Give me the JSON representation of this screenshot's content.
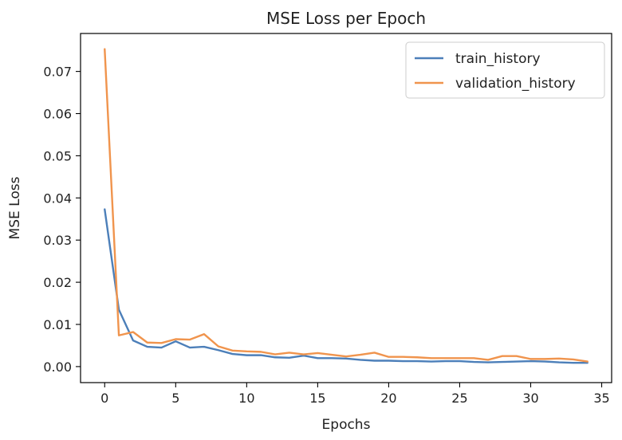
{
  "chart_data": {
    "type": "line",
    "title": "MSE Loss per Epoch",
    "xlabel": "Epochs",
    "ylabel": "MSE Loss",
    "xlim": [
      -1.7,
      35.7
    ],
    "ylim": [
      -0.0038,
      0.079
    ],
    "xticks": [
      0,
      5,
      10,
      15,
      20,
      25,
      30,
      35
    ],
    "yticks": [
      0.0,
      0.01,
      0.02,
      0.03,
      0.04,
      0.05,
      0.06,
      0.07
    ],
    "ytick_labels": [
      "0.00",
      "0.01",
      "0.02",
      "0.03",
      "0.04",
      "0.05",
      "0.06",
      "0.07"
    ],
    "grid": false,
    "legend_position": "top-right",
    "x": [
      0,
      1,
      2,
      3,
      4,
      5,
      6,
      7,
      8,
      9,
      10,
      11,
      12,
      13,
      14,
      15,
      16,
      17,
      18,
      19,
      20,
      21,
      22,
      23,
      24,
      25,
      26,
      27,
      28,
      29,
      30,
      31,
      32,
      33,
      34
    ],
    "series": [
      {
        "name": "train_history",
        "color": "#4c7fb9",
        "values": [
          0.0373,
          0.0135,
          0.0062,
          0.0047,
          0.0045,
          0.006,
          0.0045,
          0.0047,
          0.0039,
          0.003,
          0.0027,
          0.0027,
          0.0022,
          0.0021,
          0.0026,
          0.002,
          0.002,
          0.0019,
          0.0016,
          0.0014,
          0.0014,
          0.0013,
          0.0013,
          0.0012,
          0.0013,
          0.0013,
          0.0011,
          0.001,
          0.0011,
          0.0012,
          0.0013,
          0.0012,
          0.001,
          0.0009,
          0.0009
        ]
      },
      {
        "name": "validation_history",
        "color": "#f0944d",
        "values": [
          0.0753,
          0.0074,
          0.0082,
          0.0057,
          0.0056,
          0.0065,
          0.0064,
          0.0077,
          0.0048,
          0.0038,
          0.0036,
          0.0035,
          0.0029,
          0.0033,
          0.0029,
          0.0032,
          0.0028,
          0.0024,
          0.0028,
          0.0033,
          0.0023,
          0.0023,
          0.0022,
          0.002,
          0.002,
          0.002,
          0.002,
          0.0016,
          0.0025,
          0.0025,
          0.0018,
          0.0018,
          0.0019,
          0.0017,
          0.0012
        ]
      }
    ]
  }
}
